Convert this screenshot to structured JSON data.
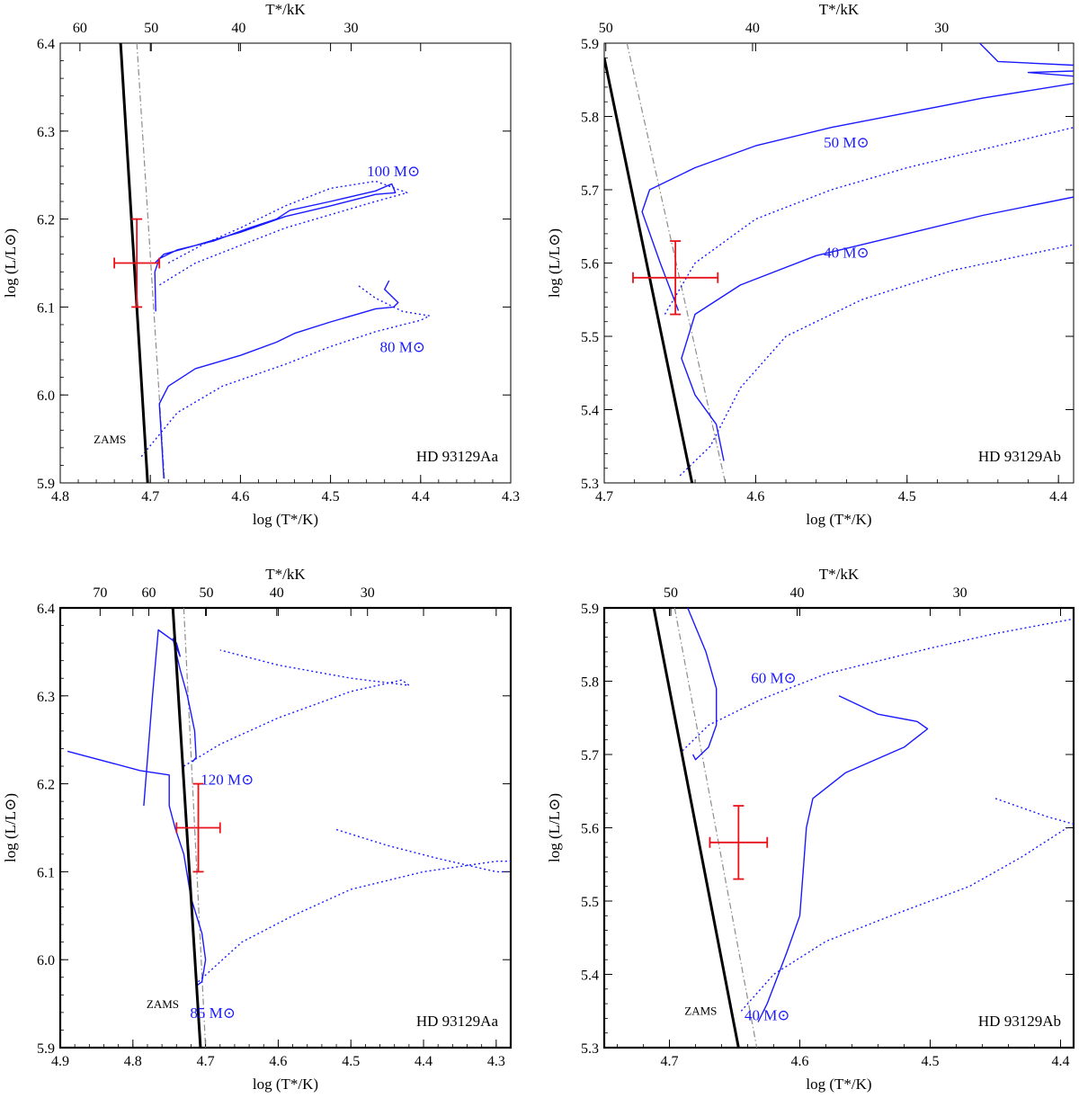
{
  "figure": {
    "width": 1200,
    "height": 1227
  },
  "chart_data": [
    {
      "type": "line",
      "star_label": "HD 93129Aa",
      "xlabel": "log (T*/K)",
      "ylabel": "log (L/L⊙)",
      "top_axis_label": "T*/kK",
      "xlim": [
        4.8,
        4.3
      ],
      "ylim": [
        5.9,
        6.4
      ],
      "x_ticks": [
        "4.8",
        "4.7",
        "4.6",
        "4.5",
        "4.4",
        "4.3"
      ],
      "y_ticks": [
        "5.9",
        "6.0",
        "6.1",
        "6.2",
        "6.3",
        "6.4"
      ],
      "top_ticks": [
        60,
        50,
        40,
        30
      ],
      "zams": {
        "label": "ZAMS",
        "points": [
          [
            4.733,
            6.4
          ],
          [
            4.703,
            5.9
          ]
        ]
      },
      "dashdot": {
        "points": [
          [
            4.715,
            6.4
          ],
          [
            4.684,
            5.9
          ]
        ]
      },
      "track_labels": [
        {
          "text": "100 M⊙",
          "at": [
            4.43,
            6.255
          ]
        },
        {
          "text": "80 M⊙",
          "at": [
            4.42,
            6.055
          ]
        }
      ],
      "series": [
        {
          "style": "solid",
          "points": [
            [
              4.694,
              6.095
            ],
            [
              4.695,
              6.14
            ],
            [
              4.69,
              6.155
            ],
            [
              4.67,
              6.165
            ],
            [
              4.63,
              6.175
            ],
            [
              4.59,
              6.19
            ],
            [
              4.56,
              6.2
            ],
            [
              4.545,
              6.21
            ],
            [
              4.5,
              6.22
            ],
            [
              4.45,
              6.232
            ],
            [
              4.432,
              6.24
            ],
            [
              4.428,
              6.23
            ],
            [
              4.45,
              6.228
            ],
            [
              4.5,
              6.215
            ],
            [
              4.55,
              6.203
            ],
            [
              4.6,
              6.185
            ],
            [
              4.65,
              6.17
            ],
            [
              4.685,
              6.16
            ],
            [
              4.695,
              6.15
            ]
          ]
        },
        {
          "style": "dotted",
          "points": [
            [
              4.68,
              6.15
            ],
            [
              4.64,
              6.172
            ],
            [
              4.6,
              6.19
            ],
            [
              4.55,
              6.215
            ],
            [
              4.5,
              6.235
            ],
            [
              4.45,
              6.243
            ],
            [
              4.415,
              6.23
            ],
            [
              4.45,
              6.22
            ],
            [
              4.5,
              6.205
            ],
            [
              4.55,
              6.19
            ],
            [
              4.6,
              6.17
            ],
            [
              4.65,
              6.15
            ],
            [
              4.69,
              6.125
            ]
          ]
        },
        {
          "style": "solid",
          "points": [
            [
              4.685,
              5.905
            ],
            [
              4.687,
              5.94
            ],
            [
              4.69,
              5.99
            ],
            [
              4.68,
              6.01
            ],
            [
              4.65,
              6.03
            ],
            [
              4.6,
              6.045
            ],
            [
              4.56,
              6.06
            ],
            [
              4.54,
              6.07
            ],
            [
              4.5,
              6.083
            ],
            [
              4.45,
              6.098
            ],
            [
              4.43,
              6.1
            ],
            [
              4.425,
              6.105
            ],
            [
              4.44,
              6.12
            ],
            [
              4.435,
              6.13
            ]
          ]
        },
        {
          "style": "dotted",
          "points": [
            [
              4.71,
              5.93
            ],
            [
              4.67,
              5.98
            ],
            [
              4.62,
              6.01
            ],
            [
              4.55,
              6.035
            ],
            [
              4.5,
              6.055
            ],
            [
              4.45,
              6.072
            ],
            [
              4.4,
              6.085
            ],
            [
              4.39,
              6.09
            ],
            [
              4.42,
              6.095
            ],
            [
              4.45,
              6.11
            ],
            [
              4.47,
              6.125
            ]
          ]
        }
      ],
      "error_bar": {
        "x": 4.715,
        "y": 6.15,
        "x_err": 0.025,
        "y_err": 0.05
      }
    },
    {
      "type": "line",
      "star_label": "HD 93129Ab",
      "xlabel": "log (T*/K)",
      "ylabel": "log (L/L⊙)",
      "top_axis_label": "T*/kK",
      "xlim": [
        4.7,
        4.39
      ],
      "ylim": [
        5.3,
        5.9
      ],
      "x_ticks": [
        "4.7",
        "4.6",
        "4.5",
        "4.4"
      ],
      "y_ticks": [
        "5.3",
        "5.4",
        "5.5",
        "5.6",
        "5.7",
        "5.8",
        "5.9"
      ],
      "top_ticks": [
        50,
        40,
        30
      ],
      "zams": {
        "points": [
          [
            4.7,
            5.88
          ],
          [
            4.642,
            5.3
          ]
        ]
      },
      "dashdot": {
        "points": [
          [
            4.685,
            5.9
          ],
          [
            4.62,
            5.3
          ]
        ]
      },
      "track_labels": [
        {
          "text": "50 M⊙",
          "at": [
            4.54,
            5.765
          ]
        },
        {
          "text": "40 M⊙",
          "at": [
            4.54,
            5.615
          ]
        }
      ],
      "series": [
        {
          "style": "solid",
          "points": [
            [
              4.651,
              5.535
            ],
            [
              4.663,
              5.6
            ],
            [
              4.675,
              5.67
            ],
            [
              4.67,
              5.7
            ],
            [
              4.64,
              5.73
            ],
            [
              4.6,
              5.76
            ],
            [
              4.55,
              5.785
            ],
            [
              4.5,
              5.805
            ],
            [
              4.45,
              5.825
            ],
            [
              4.39,
              5.845
            ]
          ]
        },
        {
          "style": "dotted",
          "points": [
            [
              4.66,
              5.53
            ],
            [
              4.64,
              5.6
            ],
            [
              4.6,
              5.66
            ],
            [
              4.55,
              5.7
            ],
            [
              4.5,
              5.73
            ],
            [
              4.45,
              5.755
            ],
            [
              4.39,
              5.785
            ]
          ]
        },
        {
          "style": "solid",
          "points": [
            [
              4.452,
              5.9
            ],
            [
              4.44,
              5.875
            ],
            [
              4.39,
              5.87
            ]
          ]
        },
        {
          "style": "solid",
          "points": [
            [
              4.39,
              5.855
            ],
            [
              4.42,
              5.86
            ],
            [
              4.39,
              5.862
            ]
          ]
        },
        {
          "style": "solid",
          "points": [
            [
              4.621,
              5.33
            ],
            [
              4.626,
              5.38
            ],
            [
              4.64,
              5.42
            ],
            [
              4.649,
              5.47
            ],
            [
              4.64,
              5.53
            ],
            [
              4.61,
              5.57
            ],
            [
              4.56,
              5.61
            ],
            [
              4.5,
              5.64
            ],
            [
              4.45,
              5.665
            ],
            [
              4.39,
              5.69
            ]
          ]
        },
        {
          "style": "dotted",
          "points": [
            [
              4.65,
              5.31
            ],
            [
              4.63,
              5.35
            ],
            [
              4.61,
              5.43
            ],
            [
              4.58,
              5.5
            ],
            [
              4.53,
              5.55
            ],
            [
              4.47,
              5.59
            ],
            [
              4.39,
              5.625
            ]
          ]
        }
      ],
      "error_bar": {
        "x": 4.653,
        "y": 5.58,
        "x_err": 0.028,
        "y_err": 0.05
      }
    },
    {
      "type": "line",
      "star_label": "HD 93129Aa",
      "xlabel": "log (T*/K)",
      "ylabel": "log (L/L⊙)",
      "top_axis_label": "T*/kK",
      "xlim": [
        4.9,
        4.28
      ],
      "ylim": [
        5.9,
        6.4
      ],
      "x_ticks": [
        "4.9",
        "4.8",
        "4.7",
        "4.6",
        "4.5",
        "4.4",
        "4.3"
      ],
      "y_ticks": [
        "5.9",
        "6.0",
        "6.1",
        "6.2",
        "6.3",
        "6.4"
      ],
      "top_ticks": [
        70,
        60,
        50,
        40,
        30
      ],
      "zams": {
        "label": "ZAMS",
        "points": [
          [
            4.745,
            6.4
          ],
          [
            4.707,
            5.9
          ]
        ]
      },
      "dashdot": {
        "points": [
          [
            4.73,
            6.4
          ],
          [
            4.7,
            5.9
          ]
        ]
      },
      "track_labels": [
        {
          "text": "120 M⊙",
          "at": [
            4.67,
            6.205
          ]
        },
        {
          "text": "85 M⊙",
          "at": [
            4.69,
            5.94
          ]
        }
      ],
      "series": [
        {
          "style": "solid",
          "points": [
            [
              4.89,
              6.237
            ],
            [
              4.79,
              6.215
            ],
            [
              4.75,
              6.21
            ],
            [
              4.75,
              6.175
            ],
            [
              4.742,
              6.15
            ],
            [
              4.73,
              6.12
            ],
            [
              4.72,
              6.07
            ],
            [
              4.705,
              6.03
            ],
            [
              4.7,
              6.0
            ],
            [
              4.705,
              5.975
            ],
            [
              4.713,
              5.97
            ]
          ]
        },
        {
          "style": "solid",
          "points": [
            [
              4.785,
              6.175
            ],
            [
              4.773,
              6.3
            ],
            [
              4.765,
              6.375
            ],
            [
              4.74,
              6.36
            ],
            [
              4.735,
              6.345
            ],
            [
              4.745,
              6.365
            ],
            [
              4.735,
              6.33
            ],
            [
              4.725,
              6.3
            ],
            [
              4.715,
              6.26
            ],
            [
              4.713,
              6.23
            ],
            [
              4.718,
              6.225
            ]
          ]
        },
        {
          "style": "dotted",
          "points": [
            [
              4.71,
              5.975
            ],
            [
              4.65,
              6.02
            ],
            [
              4.58,
              6.05
            ],
            [
              4.5,
              6.08
            ],
            [
              4.4,
              6.1
            ],
            [
              4.3,
              6.112
            ],
            [
              4.28,
              6.112
            ]
          ]
        },
        {
          "style": "dotted",
          "points": [
            [
              4.52,
              6.148
            ],
            [
              4.45,
              6.13
            ],
            [
              4.38,
              6.115
            ],
            [
              4.3,
              6.1
            ],
            [
              4.28,
              6.1
            ]
          ]
        },
        {
          "style": "dotted",
          "points": [
            [
              4.73,
              6.22
            ],
            [
              4.68,
              6.245
            ],
            [
              4.6,
              6.275
            ],
            [
              4.5,
              6.305
            ],
            [
              4.43,
              6.318
            ],
            [
              4.42,
              6.312
            ],
            [
              4.5,
              6.32
            ],
            [
              4.6,
              6.335
            ],
            [
              4.68,
              6.352
            ]
          ]
        }
      ],
      "error_bar": {
        "x": 4.71,
        "y": 6.15,
        "x_err": 0.03,
        "y_err": 0.05
      }
    },
    {
      "type": "line",
      "star_label": "HD 93129Ab",
      "xlabel": "log (T*/K)",
      "ylabel": "log (L/L⊙)",
      "top_axis_label": "T*/kK",
      "xlim": [
        4.75,
        4.39
      ],
      "ylim": [
        5.3,
        5.9
      ],
      "x_ticks": [
        "4.7",
        "4.6",
        "4.5",
        "4.4"
      ],
      "y_ticks": [
        "5.3",
        "5.4",
        "5.5",
        "5.6",
        "5.7",
        "5.8",
        "5.9"
      ],
      "top_ticks": [
        50,
        40,
        30
      ],
      "zams": {
        "label": "ZAMS",
        "points": [
          [
            4.712,
            5.9
          ],
          [
            4.647,
            5.3
          ]
        ]
      },
      "dashdot": {
        "points": [
          [
            4.696,
            5.9
          ],
          [
            4.633,
            5.3
          ]
        ]
      },
      "track_labels": [
        {
          "text": "60 M⊙",
          "at": [
            4.62,
            5.805
          ]
        },
        {
          "text": "40 M⊙",
          "at": [
            4.625,
            5.345
          ]
        }
      ],
      "series": [
        {
          "style": "solid",
          "points": [
            [
              4.686,
              5.9
            ],
            [
              4.672,
              5.84
            ],
            [
              4.664,
              5.79
            ],
            [
              4.664,
              5.74
            ],
            [
              4.67,
              5.71
            ],
            [
              4.68,
              5.693
            ],
            [
              4.682,
              5.7
            ]
          ]
        },
        {
          "style": "dotted",
          "points": [
            [
              4.69,
              5.705
            ],
            [
              4.67,
              5.74
            ],
            [
              4.63,
              5.775
            ],
            [
              4.58,
              5.81
            ],
            [
              4.5,
              5.845
            ],
            [
              4.45,
              5.865
            ],
            [
              4.39,
              5.885
            ]
          ]
        },
        {
          "style": "solid",
          "points": [
            [
              4.632,
              5.335
            ],
            [
              4.625,
              5.36
            ],
            [
              4.61,
              5.43
            ],
            [
              4.6,
              5.48
            ],
            [
              4.597,
              5.55
            ],
            [
              4.595,
              5.6
            ],
            [
              4.59,
              5.64
            ],
            [
              4.565,
              5.675
            ],
            [
              4.52,
              5.71
            ],
            [
              4.502,
              5.735
            ],
            [
              4.51,
              5.745
            ],
            [
              4.54,
              5.755
            ],
            [
              4.57,
              5.78
            ]
          ]
        },
        {
          "style": "dotted",
          "points": [
            [
              4.645,
              5.35
            ],
            [
              4.62,
              5.4
            ],
            [
              4.58,
              5.445
            ],
            [
              4.53,
              5.48
            ],
            [
              4.47,
              5.52
            ],
            [
              4.43,
              5.56
            ],
            [
              4.395,
              5.6
            ]
          ]
        },
        {
          "style": "dotted",
          "points": [
            [
              4.45,
              5.64
            ],
            [
              4.41,
              5.615
            ],
            [
              4.39,
              5.605
            ]
          ]
        }
      ],
      "error_bar": {
        "x": 4.647,
        "y": 5.58,
        "x_err": 0.022,
        "y_err": 0.05
      }
    }
  ]
}
